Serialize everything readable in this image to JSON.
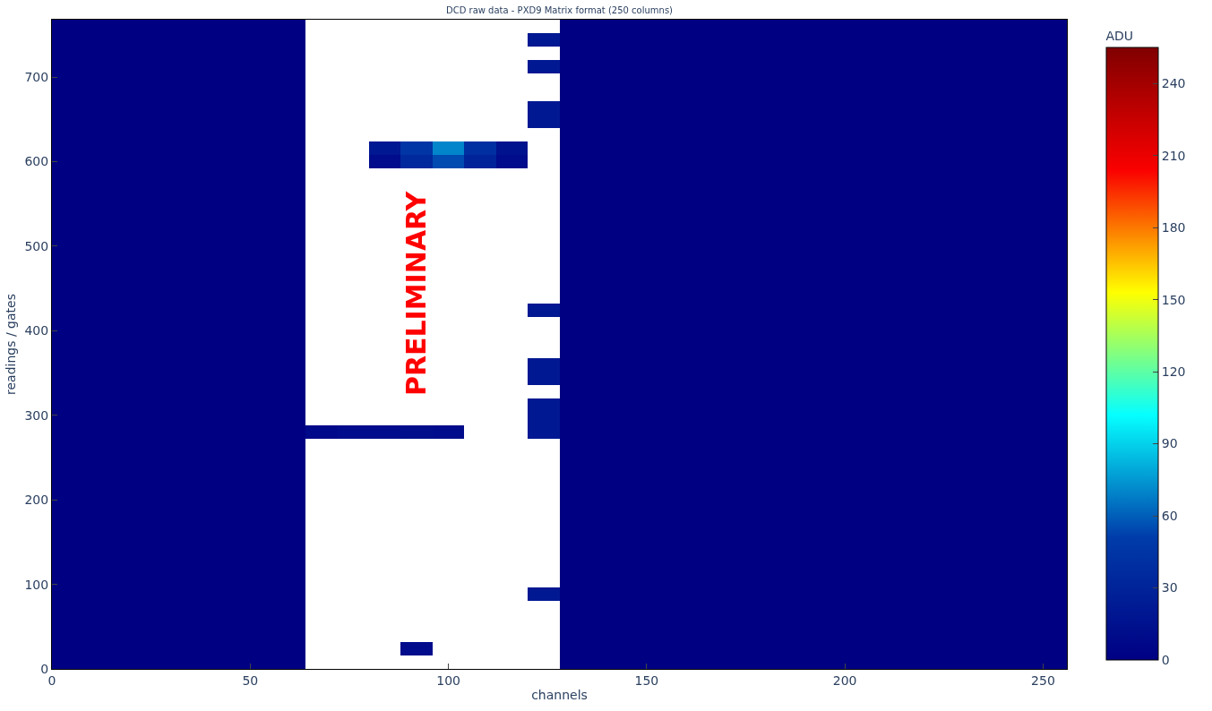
{
  "chart_data": {
    "type": "heatmap",
    "title": "DCD raw data - PXD9 Matrix format (250 columns)",
    "xlabel": "channels",
    "ylabel": "readings / gates",
    "clabel": "ADU",
    "xlim": [
      0,
      256
    ],
    "ylim": [
      0,
      768
    ],
    "xticks": [
      0,
      50,
      100,
      150,
      200,
      250
    ],
    "yticks": [
      0,
      100,
      200,
      300,
      400,
      500,
      600,
      700
    ],
    "clim": [
      0,
      255
    ],
    "cticks": [
      0,
      30,
      60,
      90,
      120,
      150,
      180,
      210,
      240
    ],
    "annotations": [
      "PRELIMINARY"
    ],
    "cells": [
      [
        0,
        0,
        0,
        0,
        0,
        0,
        0,
        0,
        null,
        null,
        null,
        null,
        null,
        null,
        null,
        null,
        0,
        0,
        0,
        0,
        0,
        0,
        0,
        0,
        0,
        0,
        0,
        0,
        0,
        0,
        0,
        0
      ],
      [
        0,
        0,
        0,
        0,
        0,
        0,
        0,
        0,
        null,
        null,
        null,
        null,
        null,
        null,
        null,
        20,
        0,
        0,
        0,
        0,
        0,
        0,
        0,
        0,
        0,
        0,
        0,
        0,
        0,
        0,
        0,
        0
      ],
      [
        0,
        0,
        0,
        0,
        0,
        0,
        0,
        0,
        null,
        null,
        null,
        null,
        null,
        null,
        null,
        null,
        0,
        0,
        0,
        0,
        0,
        0,
        0,
        0,
        0,
        0,
        0,
        0,
        0,
        0,
        0,
        0
      ],
      [
        0,
        0,
        0,
        0,
        0,
        0,
        0,
        0,
        null,
        null,
        null,
        null,
        null,
        null,
        null,
        20,
        0,
        0,
        0,
        0,
        0,
        0,
        0,
        0,
        0,
        0,
        0,
        0,
        0,
        0,
        0,
        0
      ],
      [
        0,
        0,
        0,
        0,
        0,
        0,
        0,
        0,
        null,
        null,
        null,
        null,
        null,
        null,
        null,
        null,
        0,
        0,
        0,
        0,
        0,
        0,
        0,
        0,
        0,
        0,
        0,
        0,
        0,
        0,
        0,
        0
      ],
      [
        0,
        0,
        0,
        0,
        0,
        0,
        0,
        0,
        null,
        null,
        null,
        null,
        null,
        null,
        null,
        null,
        0,
        0,
        0,
        0,
        0,
        0,
        0,
        0,
        0,
        0,
        0,
        0,
        0,
        0,
        0,
        0
      ],
      [
        0,
        0,
        0,
        0,
        0,
        0,
        0,
        0,
        null,
        null,
        null,
        null,
        null,
        null,
        null,
        20,
        0,
        0,
        0,
        0,
        0,
        0,
        0,
        0,
        0,
        0,
        0,
        0,
        0,
        0,
        0,
        0
      ],
      [
        0,
        0,
        0,
        0,
        0,
        0,
        0,
        0,
        null,
        null,
        null,
        null,
        null,
        null,
        null,
        20,
        0,
        0,
        0,
        0,
        0,
        0,
        0,
        0,
        0,
        0,
        0,
        0,
        0,
        0,
        0,
        0
      ],
      [
        0,
        0,
        0,
        0,
        0,
        0,
        0,
        0,
        null,
        null,
        null,
        null,
        null,
        null,
        null,
        null,
        0,
        0,
        0,
        0,
        0,
        0,
        0,
        0,
        0,
        0,
        0,
        0,
        0,
        0,
        0,
        0
      ],
      [
        0,
        0,
        0,
        0,
        0,
        0,
        0,
        0,
        null,
        null,
        20,
        45,
        70,
        40,
        15,
        null,
        0,
        0,
        0,
        0,
        0,
        0,
        0,
        0,
        0,
        0,
        0,
        0,
        0,
        0,
        0,
        0
      ],
      [
        0,
        0,
        0,
        0,
        0,
        0,
        0,
        0,
        null,
        null,
        10,
        35,
        55,
        30,
        10,
        null,
        0,
        0,
        0,
        0,
        0,
        0,
        0,
        0,
        0,
        0,
        0,
        0,
        0,
        0,
        0,
        0
      ],
      [
        0,
        0,
        0,
        0,
        0,
        0,
        0,
        0,
        null,
        null,
        null,
        null,
        null,
        null,
        null,
        null,
        0,
        0,
        0,
        0,
        0,
        0,
        0,
        0,
        0,
        0,
        0,
        0,
        0,
        0,
        0,
        0
      ],
      [
        0,
        0,
        0,
        0,
        0,
        0,
        0,
        0,
        null,
        null,
        null,
        null,
        null,
        null,
        null,
        null,
        0,
        0,
        0,
        0,
        0,
        0,
        0,
        0,
        0,
        0,
        0,
        0,
        0,
        0,
        0,
        0
      ],
      [
        0,
        0,
        0,
        0,
        0,
        0,
        0,
        0,
        null,
        null,
        null,
        null,
        null,
        null,
        null,
        null,
        0,
        0,
        0,
        0,
        0,
        0,
        0,
        0,
        0,
        0,
        0,
        0,
        0,
        0,
        0,
        0
      ],
      [
        0,
        0,
        0,
        0,
        0,
        0,
        0,
        0,
        null,
        null,
        null,
        null,
        null,
        null,
        null,
        null,
        0,
        0,
        0,
        0,
        0,
        0,
        0,
        0,
        0,
        0,
        0,
        0,
        0,
        0,
        0,
        0
      ],
      [
        0,
        0,
        0,
        0,
        0,
        0,
        0,
        0,
        null,
        null,
        null,
        null,
        null,
        null,
        null,
        null,
        0,
        0,
        0,
        0,
        0,
        0,
        0,
        0,
        0,
        0,
        0,
        0,
        0,
        0,
        0,
        0
      ],
      [
        0,
        0,
        0,
        0,
        0,
        0,
        0,
        0,
        null,
        null,
        null,
        null,
        null,
        null,
        null,
        null,
        0,
        0,
        0,
        0,
        0,
        0,
        0,
        0,
        0,
        0,
        0,
        0,
        0,
        0,
        0,
        0
      ],
      [
        0,
        0,
        0,
        0,
        0,
        0,
        0,
        0,
        null,
        null,
        null,
        null,
        null,
        null,
        null,
        null,
        0,
        0,
        0,
        0,
        0,
        0,
        0,
        0,
        0,
        0,
        0,
        0,
        0,
        0,
        0,
        0
      ],
      [
        0,
        0,
        0,
        0,
        0,
        0,
        0,
        0,
        null,
        null,
        null,
        null,
        null,
        null,
        null,
        null,
        0,
        0,
        0,
        0,
        0,
        0,
        0,
        0,
        0,
        0,
        0,
        0,
        0,
        0,
        0,
        0
      ],
      [
        0,
        0,
        0,
        0,
        0,
        0,
        0,
        0,
        null,
        null,
        null,
        null,
        null,
        null,
        null,
        null,
        0,
        0,
        0,
        0,
        0,
        0,
        0,
        0,
        0,
        0,
        0,
        0,
        0,
        0,
        0,
        0
      ],
      [
        0,
        0,
        0,
        0,
        0,
        0,
        0,
        0,
        null,
        null,
        null,
        null,
        null,
        null,
        null,
        null,
        0,
        0,
        0,
        0,
        0,
        0,
        0,
        0,
        0,
        0,
        0,
        0,
        0,
        0,
        0,
        0
      ],
      [
        0,
        0,
        0,
        0,
        0,
        0,
        0,
        0,
        null,
        null,
        null,
        null,
        null,
        null,
        null,
        20,
        0,
        0,
        0,
        0,
        0,
        0,
        0,
        0,
        0,
        0,
        0,
        0,
        0,
        0,
        0,
        0
      ],
      [
        0,
        0,
        0,
        0,
        0,
        0,
        0,
        0,
        null,
        null,
        null,
        null,
        null,
        null,
        null,
        null,
        0,
        0,
        0,
        0,
        0,
        0,
        0,
        0,
        0,
        0,
        0,
        0,
        0,
        0,
        0,
        0
      ],
      [
        0,
        0,
        0,
        0,
        0,
        0,
        0,
        0,
        null,
        null,
        null,
        null,
        null,
        null,
        null,
        null,
        0,
        0,
        0,
        0,
        0,
        0,
        0,
        0,
        0,
        0,
        0,
        0,
        0,
        0,
        0,
        0
      ],
      [
        0,
        0,
        0,
        0,
        0,
        0,
        0,
        0,
        null,
        null,
        null,
        null,
        null,
        null,
        null,
        null,
        0,
        0,
        0,
        0,
        0,
        0,
        0,
        0,
        0,
        0,
        0,
        0,
        0,
        0,
        0,
        0
      ],
      [
        0,
        0,
        0,
        0,
        0,
        0,
        0,
        0,
        null,
        null,
        null,
        null,
        null,
        null,
        null,
        20,
        0,
        0,
        0,
        0,
        0,
        0,
        0,
        0,
        0,
        0,
        0,
        0,
        0,
        0,
        0,
        0
      ],
      [
        0,
        0,
        0,
        0,
        0,
        0,
        0,
        0,
        null,
        null,
        null,
        null,
        null,
        null,
        null,
        20,
        0,
        0,
        0,
        0,
        0,
        0,
        0,
        0,
        0,
        0,
        0,
        0,
        0,
        0,
        0,
        0
      ],
      [
        0,
        0,
        0,
        0,
        0,
        0,
        0,
        0,
        null,
        null,
        null,
        null,
        null,
        null,
        null,
        null,
        0,
        0,
        0,
        0,
        0,
        0,
        0,
        0,
        0,
        0,
        0,
        0,
        0,
        0,
        0,
        0
      ],
      [
        0,
        0,
        0,
        0,
        0,
        0,
        0,
        0,
        null,
        null,
        null,
        null,
        null,
        null,
        null,
        20,
        0,
        0,
        0,
        0,
        0,
        0,
        0,
        0,
        0,
        0,
        0,
        0,
        0,
        0,
        0,
        0
      ],
      [
        0,
        0,
        0,
        0,
        0,
        0,
        0,
        0,
        null,
        null,
        null,
        null,
        null,
        null,
        null,
        20,
        0,
        0,
        0,
        0,
        0,
        0,
        0,
        0,
        0,
        0,
        0,
        0,
        0,
        0,
        0,
        0
      ],
      [
        0,
        0,
        0,
        0,
        0,
        0,
        0,
        0,
        8,
        10,
        10,
        12,
        10,
        null,
        null,
        20,
        0,
        0,
        0,
        0,
        0,
        0,
        0,
        0,
        0,
        0,
        0,
        0,
        0,
        0,
        0,
        0
      ],
      [
        0,
        0,
        0,
        0,
        0,
        0,
        0,
        0,
        null,
        null,
        null,
        null,
        null,
        null,
        null,
        null,
        0,
        0,
        0,
        0,
        0,
        0,
        0,
        0,
        0,
        0,
        0,
        0,
        0,
        0,
        0,
        0
      ],
      [
        0,
        0,
        0,
        0,
        0,
        0,
        0,
        0,
        null,
        null,
        null,
        null,
        null,
        null,
        null,
        null,
        0,
        0,
        0,
        0,
        0,
        0,
        0,
        0,
        0,
        0,
        0,
        0,
        0,
        0,
        0,
        0
      ],
      [
        0,
        0,
        0,
        0,
        0,
        0,
        0,
        0,
        null,
        null,
        null,
        null,
        null,
        null,
        null,
        null,
        0,
        0,
        0,
        0,
        0,
        0,
        0,
        0,
        0,
        0,
        0,
        0,
        0,
        0,
        0,
        0
      ],
      [
        0,
        0,
        0,
        0,
        0,
        0,
        0,
        0,
        null,
        null,
        null,
        null,
        null,
        null,
        null,
        null,
        0,
        0,
        0,
        0,
        0,
        0,
        0,
        0,
        0,
        0,
        0,
        0,
        0,
        0,
        0,
        0
      ],
      [
        0,
        0,
        0,
        0,
        0,
        0,
        0,
        0,
        null,
        null,
        null,
        null,
        null,
        null,
        null,
        null,
        0,
        0,
        0,
        0,
        0,
        0,
        0,
        0,
        0,
        0,
        0,
        0,
        0,
        0,
        0,
        0
      ],
      [
        0,
        0,
        0,
        0,
        0,
        0,
        0,
        0,
        null,
        null,
        null,
        null,
        null,
        null,
        null,
        null,
        0,
        0,
        0,
        0,
        0,
        0,
        0,
        0,
        0,
        0,
        0,
        0,
        0,
        0,
        0,
        0
      ],
      [
        0,
        0,
        0,
        0,
        0,
        0,
        0,
        0,
        null,
        null,
        null,
        null,
        null,
        null,
        null,
        null,
        0,
        0,
        0,
        0,
        0,
        0,
        0,
        0,
        0,
        0,
        0,
        0,
        0,
        0,
        0,
        0
      ],
      [
        0,
        0,
        0,
        0,
        0,
        0,
        0,
        0,
        null,
        null,
        null,
        null,
        null,
        null,
        null,
        null,
        0,
        0,
        0,
        0,
        0,
        0,
        0,
        0,
        0,
        0,
        0,
        0,
        0,
        0,
        0,
        0
      ],
      [
        0,
        0,
        0,
        0,
        0,
        0,
        0,
        0,
        null,
        null,
        null,
        null,
        null,
        null,
        null,
        null,
        0,
        0,
        0,
        0,
        0,
        0,
        0,
        0,
        0,
        0,
        0,
        0,
        0,
        0,
        0,
        0
      ],
      [
        0,
        0,
        0,
        0,
        0,
        0,
        0,
        0,
        null,
        null,
        null,
        null,
        null,
        null,
        null,
        null,
        0,
        0,
        0,
        0,
        0,
        0,
        0,
        0,
        0,
        0,
        0,
        0,
        0,
        0,
        0,
        0
      ],
      [
        0,
        0,
        0,
        0,
        0,
        0,
        0,
        0,
        null,
        null,
        null,
        null,
        null,
        null,
        null,
        null,
        0,
        0,
        0,
        0,
        0,
        0,
        0,
        0,
        0,
        0,
        0,
        0,
        0,
        0,
        0,
        0
      ],
      [
        0,
        0,
        0,
        0,
        0,
        0,
        0,
        0,
        null,
        null,
        null,
        null,
        null,
        null,
        null,
        20,
        0,
        0,
        0,
        0,
        0,
        0,
        0,
        0,
        0,
        0,
        0,
        0,
        0,
        0,
        0,
        0
      ],
      [
        0,
        0,
        0,
        0,
        0,
        0,
        0,
        0,
        null,
        null,
        null,
        null,
        null,
        null,
        null,
        null,
        0,
        0,
        0,
        0,
        0,
        0,
        0,
        0,
        0,
        0,
        0,
        0,
        0,
        0,
        0,
        0
      ],
      [
        0,
        0,
        0,
        0,
        0,
        0,
        0,
        0,
        null,
        null,
        null,
        null,
        null,
        null,
        null,
        null,
        0,
        0,
        0,
        0,
        0,
        0,
        0,
        0,
        0,
        0,
        0,
        0,
        0,
        0,
        0,
        0
      ],
      [
        0,
        0,
        0,
        0,
        0,
        0,
        0,
        0,
        null,
        null,
        null,
        null,
        null,
        null,
        null,
        null,
        0,
        0,
        0,
        0,
        0,
        0,
        0,
        0,
        0,
        0,
        0,
        0,
        0,
        0,
        0,
        0
      ],
      [
        0,
        0,
        0,
        0,
        0,
        0,
        0,
        0,
        null,
        null,
        null,
        10,
        null,
        null,
        null,
        null,
        0,
        0,
        0,
        0,
        0,
        0,
        0,
        0,
        0,
        0,
        0,
        0,
        0,
        0,
        0,
        0
      ],
      [
        0,
        0,
        0,
        0,
        0,
        0,
        0,
        0,
        null,
        null,
        null,
        null,
        null,
        null,
        null,
        null,
        0,
        0,
        0,
        0,
        0,
        0,
        0,
        0,
        0,
        0,
        0,
        0,
        0,
        0,
        0,
        0
      ]
    ]
  }
}
